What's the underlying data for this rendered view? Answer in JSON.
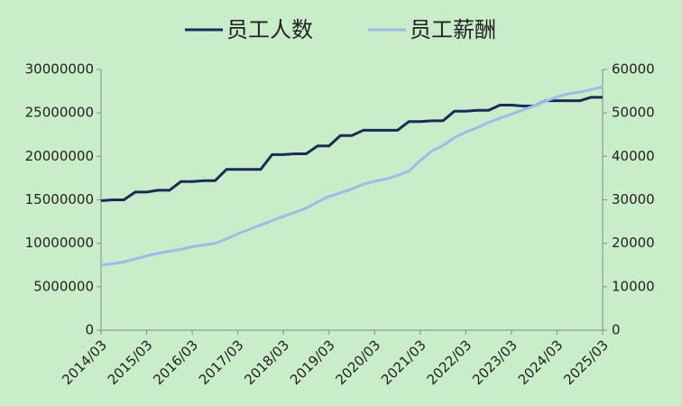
{
  "chart_data": {
    "type": "line",
    "categories": [
      "2014/03",
      null,
      null,
      null,
      "2015/03",
      null,
      null,
      null,
      "2016/03",
      null,
      null,
      null,
      "2017/03",
      null,
      null,
      null,
      "2018/03",
      null,
      null,
      null,
      "2019/03",
      null,
      null,
      null,
      "2020/03",
      null,
      null,
      null,
      "2021/03",
      null,
      null,
      null,
      "2022/03",
      null,
      null,
      null,
      "2023/03",
      null,
      null,
      null,
      "2024/03",
      null,
      null,
      null,
      "2025/03"
    ],
    "series": [
      {
        "name": "员工人数",
        "color": "#1a2b57",
        "values": [
          14900000,
          15000000,
          15000000,
          15900000,
          15900000,
          16100000,
          16100000,
          17100000,
          17100000,
          17200000,
          17200000,
          18500000,
          18500000,
          18500000,
          18500000,
          20200000,
          20200000,
          20300000,
          20300000,
          21200000,
          21200000,
          22400000,
          22400000,
          23000000,
          23000000,
          23000000,
          23000000,
          24000000,
          24000000,
          24100000,
          24100000,
          25200000,
          25200000,
          25300000,
          25300000,
          25900000,
          25900000,
          25800000,
          25800000,
          26400000,
          26400000,
          26400000,
          26400000,
          26800000,
          26800000
        ]
      },
      {
        "name": "员工薪酬",
        "color": "#9dbcec",
        "axis": "y2",
        "values": [
          15000,
          15300,
          15700,
          16400,
          17100,
          17700,
          18200,
          18600,
          19200,
          19600,
          20000,
          21000,
          22200,
          23200,
          24200,
          25200,
          26200,
          27100,
          28100,
          29500,
          30800,
          31600,
          32500,
          33600,
          34300,
          34800,
          35600,
          36600,
          39000,
          41200,
          42500,
          44300,
          45600,
          46600,
          47800,
          48800,
          49700,
          50700,
          51600,
          52700,
          53700,
          54400,
          54800,
          55400,
          56000
        ]
      }
    ],
    "ylim": [
      0,
      30000000
    ],
    "yticks": [
      0,
      5000000,
      10000000,
      15000000,
      20000000,
      25000000,
      30000000
    ],
    "y2lim": [
      0,
      60000
    ],
    "y2ticks": [
      0,
      10000,
      20000,
      30000,
      40000,
      50000,
      60000
    ]
  }
}
